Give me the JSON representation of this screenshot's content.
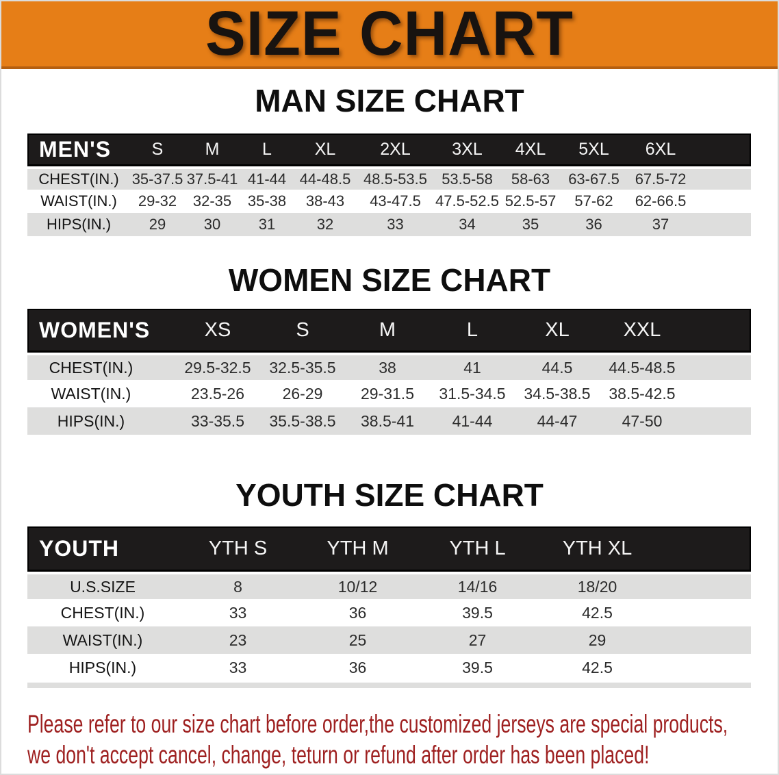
{
  "banner": {
    "title": "SIZE CHART"
  },
  "sections": [
    {
      "heading": "MAN SIZE CHART",
      "corner_label": "MEN'S",
      "columns": [
        "S",
        "M",
        "L",
        "XL",
        "2XL",
        "3XL",
        "4XL",
        "5XL",
        "6XL"
      ],
      "rows": [
        {
          "label": "CHEST(IN.)",
          "values": [
            "35-37.5",
            "37.5-41",
            "41-44",
            "44-48.5",
            "48.5-53.5",
            "53.5-58",
            "58-63",
            "63-67.5",
            "67.5-72"
          ]
        },
        {
          "label": "WAIST(IN.)",
          "values": [
            "29-32",
            "32-35",
            "35-38",
            "38-43",
            "43-47.5",
            "47.5-52.5",
            "52.5-57",
            "57-62",
            "62-66.5"
          ]
        },
        {
          "label": "HIPS(IN.)",
          "values": [
            "29",
            "30",
            "31",
            "32",
            "33",
            "34",
            "35",
            "36",
            "37"
          ]
        }
      ]
    },
    {
      "heading": "WOMEN SIZE CHART",
      "corner_label": "WOMEN'S",
      "columns": [
        "XS",
        "S",
        "M",
        "L",
        "XL",
        "XXL"
      ],
      "rows": [
        {
          "label": "CHEST(IN.)",
          "values": [
            "29.5-32.5",
            "32.5-35.5",
            "38",
            "41",
            "44.5",
            "44.5-48.5"
          ]
        },
        {
          "label": "WAIST(IN.)",
          "values": [
            "23.5-26",
            "26-29",
            "29-31.5",
            "31.5-34.5",
            "34.5-38.5",
            "38.5-42.5"
          ]
        },
        {
          "label": "HIPS(IN.)",
          "values": [
            "33-35.5",
            "35.5-38.5",
            "38.5-41",
            "41-44",
            "44-47",
            "47-50"
          ]
        }
      ]
    },
    {
      "heading": "YOUTH SIZE CHART",
      "corner_label": "YOUTH",
      "columns": [
        "YTH S",
        "YTH M",
        "YTH L",
        "YTH XL"
      ],
      "rows": [
        {
          "label": "U.S.SIZE",
          "values": [
            "8",
            "10/12",
            "14/16",
            "18/20"
          ]
        },
        {
          "label": "CHEST(IN.)",
          "values": [
            "33",
            "36",
            "39.5",
            "42.5"
          ]
        },
        {
          "label": "WAIST(IN.)",
          "values": [
            "23",
            "25",
            "27",
            "29"
          ]
        },
        {
          "label": "HIPS(IN.)",
          "values": [
            "33",
            "36",
            "39.5",
            "42.5"
          ]
        }
      ]
    }
  ],
  "footer_note": {
    "line1": "Please refer to our size chart before order,the customized jerseys are special products,",
    "line2": "we don't accept cancel, change, teturn or refund after order has been placed!"
  },
  "colors": {
    "banner_bg": "#E67E17",
    "banner_edge": "#B55F10",
    "header_bar_bg": "#1D1B1B",
    "row_alt_bg": "#DEDEDD",
    "note_text": "#9E2020"
  }
}
